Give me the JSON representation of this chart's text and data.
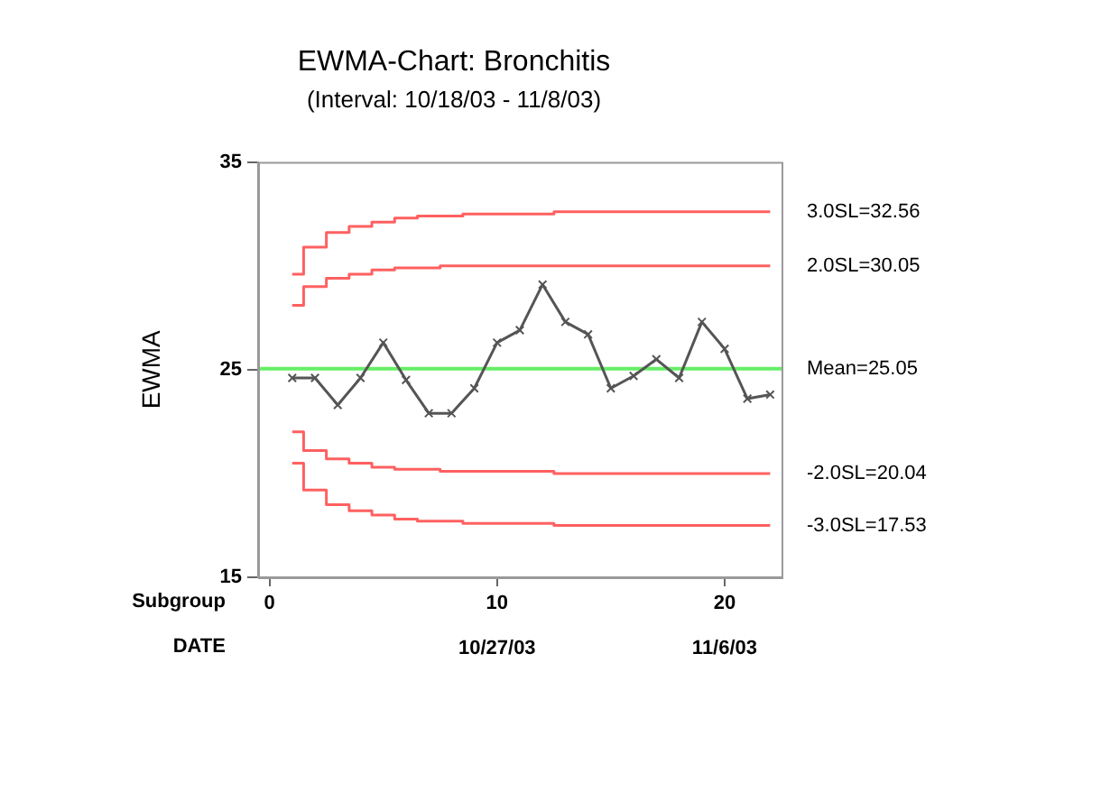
{
  "chart_data": {
    "type": "line",
    "title": "EWMA-Chart: Bronchitis",
    "subtitle": "(Interval: 10/18/03 - 11/8/03)",
    "ylabel": "EWMA",
    "xlabel": "Subgroup",
    "x2label": "DATE",
    "x": [
      1,
      2,
      3,
      4,
      5,
      6,
      7,
      8,
      9,
      10,
      11,
      12,
      13,
      14,
      15,
      16,
      17,
      18,
      19,
      20,
      21,
      22
    ],
    "xlim": [
      -0.5,
      22.5
    ],
    "xticks": [
      0,
      10,
      20
    ],
    "x2lim": [
      "2003-10-16T12:00",
      "2003-11-08T12:00"
    ],
    "x2ticks": [
      {
        "value": "2003-10-27",
        "label": "10/27/03"
      },
      {
        "value": "2003-11-06",
        "label": "11/6/03"
      }
    ],
    "ylim": [
      15,
      35
    ],
    "yticks": [
      15,
      25,
      35
    ],
    "grid": false,
    "legend": false,
    "series": [
      {
        "color": "#555555",
        "marker": "cross",
        "values": [
          24.6,
          24.6,
          23.3,
          24.6,
          26.3,
          24.5,
          22.9,
          22.9,
          24.1,
          26.3,
          26.9,
          29.1,
          27.3,
          26.7,
          24.1,
          24.7,
          25.5,
          24.6,
          27.3,
          26.0,
          23.6,
          23.8
        ]
      },
      {
        "type": "step",
        "name": "3.0SL=32.56",
        "color": "#ff6060",
        "marker": "none",
        "values": [
          29.6,
          30.9,
          31.6,
          31.9,
          32.1,
          32.3,
          32.4,
          32.4,
          32.5,
          32.5,
          32.5,
          32.5,
          32.6,
          32.6,
          32.6,
          32.6,
          32.6,
          32.6,
          32.6,
          32.6,
          32.6,
          32.6
        ]
      },
      {
        "type": "step",
        "name": "2.0SL=30.05",
        "color": "#ff6060",
        "marker": "none",
        "values": [
          28.1,
          29.0,
          29.4,
          29.6,
          29.8,
          29.9,
          29.9,
          30.0,
          30.0,
          30.0,
          30.0,
          30.0,
          30.0,
          30.0,
          30.0,
          30.0,
          30.0,
          30.0,
          30.0,
          30.0,
          30.0,
          30.0
        ]
      },
      {
        "type": "step",
        "name": "-2.0SL=20.04",
        "color": "#ff6060",
        "marker": "none",
        "values": [
          22.0,
          21.1,
          20.7,
          20.5,
          20.3,
          20.2,
          20.2,
          20.1,
          20.1,
          20.1,
          20.1,
          20.1,
          20.0,
          20.0,
          20.0,
          20.0,
          20.0,
          20.0,
          20.0,
          20.0,
          20.0,
          20.0
        ]
      },
      {
        "type": "step",
        "name": "-3.0SL=17.53",
        "color": "#ff6060",
        "marker": "none",
        "values": [
          20.5,
          19.2,
          18.5,
          18.2,
          18.0,
          17.8,
          17.7,
          17.7,
          17.6,
          17.6,
          17.6,
          17.6,
          17.5,
          17.5,
          17.5,
          17.5,
          17.5,
          17.5,
          17.5,
          17.5,
          17.5,
          17.5
        ]
      }
    ],
    "ref_lines": [
      {
        "axis": "y",
        "value": 25.05,
        "label": "Mean=25.05",
        "color": "#66ee66"
      }
    ]
  }
}
